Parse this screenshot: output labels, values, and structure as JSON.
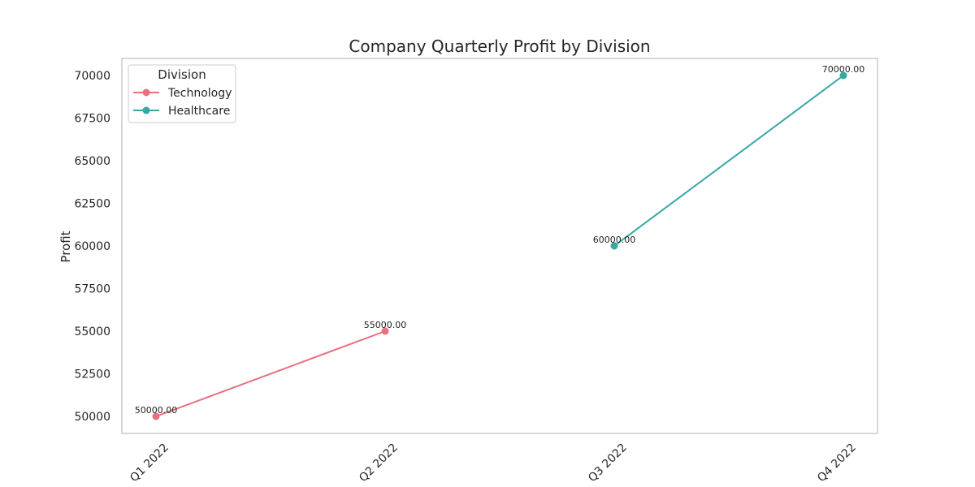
{
  "chart_data": {
    "type": "line",
    "title": "Company Quarterly Profit by Division",
    "xlabel": "",
    "ylabel": "Profit",
    "categories": [
      "Q1 2022",
      "Q2 2022",
      "Q3 2022",
      "Q4 2022"
    ],
    "ylim": [
      49000,
      71000
    ],
    "yticks": [
      50000,
      52500,
      55000,
      57500,
      60000,
      62500,
      65000,
      67500,
      70000
    ],
    "grid": false,
    "legend": {
      "title": "Division",
      "placement": "top-left"
    },
    "series": [
      {
        "name": "Technology",
        "color": "#e8707f",
        "points": [
          {
            "x": "Q1 2022",
            "y": 50000,
            "label": "50000.00"
          },
          {
            "x": "Q2 2022",
            "y": 55000,
            "label": "55000.00"
          }
        ]
      },
      {
        "name": "Healthcare",
        "color": "#36a8a4",
        "points": [
          {
            "x": "Q3 2022",
            "y": 60000,
            "label": "60000.00"
          },
          {
            "x": "Q4 2022",
            "y": 70000,
            "label": "70000.00"
          }
        ]
      }
    ]
  }
}
